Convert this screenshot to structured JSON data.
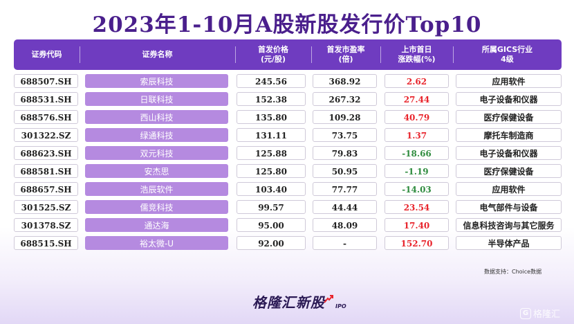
{
  "title": "2023年1-10月A股新股发行价Top10",
  "headers": {
    "code": "证券代码",
    "name": "证券名称",
    "price": [
      "首发价格",
      "(元/股)"
    ],
    "pe": [
      "首发市盈率",
      "(倍)"
    ],
    "change": [
      "上市首日",
      "涨跌幅(%)"
    ],
    "industry": [
      "所属GICS行业",
      "4级"
    ]
  },
  "rows": [
    {
      "code": "688507.SH",
      "name": "索辰科技",
      "price": "245.56",
      "pe": "368.92",
      "change": "2.62",
      "industry": "应用软件"
    },
    {
      "code": "688531.SH",
      "name": "日联科技",
      "price": "152.38",
      "pe": "267.32",
      "change": "27.44",
      "industry": "电子设备和仪器"
    },
    {
      "code": "688576.SH",
      "name": "西山科技",
      "price": "135.80",
      "pe": "109.28",
      "change": "40.79",
      "industry": "医疗保健设备"
    },
    {
      "code": "301322.SZ",
      "name": "绿通科技",
      "price": "131.11",
      "pe": "73.75",
      "change": "1.37",
      "industry": "摩托车制造商"
    },
    {
      "code": "688623.SH",
      "name": "双元科技",
      "price": "125.88",
      "pe": "79.83",
      "change": "-18.66",
      "industry": "电子设备和仪器"
    },
    {
      "code": "688581.SH",
      "name": "安杰思",
      "price": "125.80",
      "pe": "50.95",
      "change": "-1.19",
      "industry": "医疗保健设备"
    },
    {
      "code": "688657.SH",
      "name": "浩辰软件",
      "price": "103.40",
      "pe": "77.77",
      "change": "-14.03",
      "industry": "应用软件"
    },
    {
      "code": "301525.SZ",
      "name": "儒竞科技",
      "price": "99.57",
      "pe": "44.44",
      "change": "23.54",
      "industry": "电气部件与设备"
    },
    {
      "code": "301378.SZ",
      "name": "通达海",
      "price": "95.00",
      "pe": "48.09",
      "change": "17.40",
      "industry": "信息科技咨询与其它服务"
    },
    {
      "code": "688515.SH",
      "name": "裕太微-U",
      "price": "92.00",
      "pe": "-",
      "change": "152.70",
      "industry": "半导体产品"
    }
  ],
  "source": "数据支持：Choice数据",
  "brand": {
    "text": "格隆汇新股",
    "sub": "IPO"
  },
  "watermark": {
    "logo": "G",
    "text": "格隆汇"
  },
  "colors": {
    "title": "#4a1f8c",
    "header_bg": "#6f3cc0",
    "name_cell_bg": "#b58ae0",
    "positive": "#e8242c",
    "negative": "#2e8b3e"
  }
}
